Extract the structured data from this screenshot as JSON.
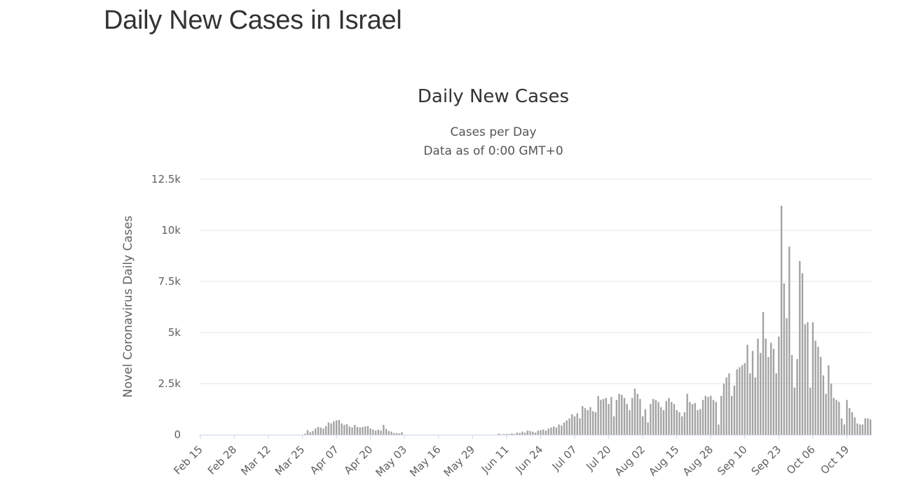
{
  "page": {
    "title": "Daily New Cases in Israel"
  },
  "chart_data": {
    "type": "bar",
    "title": "Daily New Cases",
    "subtitle_line1": "Cases per Day",
    "subtitle_line2": "Data as of 0:00 GMT+0",
    "ylabel": "Novel Coronavirus Daily Cases",
    "xlabel": "",
    "ylim": [
      0,
      12500
    ],
    "yticks": [
      0,
      2500,
      5000,
      7500,
      10000,
      12500
    ],
    "ytick_labels": [
      "0",
      "2.5k",
      "5k",
      "7.5k",
      "10k",
      "12.5k"
    ],
    "xtick_labels": [
      "Feb 15",
      "Feb 28",
      "Mar 12",
      "Mar 25",
      "Apr 07",
      "Apr 20",
      "May 03",
      "May 16",
      "May 29",
      "Jun 11",
      "Jun 24",
      "Jul 07",
      "Jul 20",
      "Aug 02",
      "Aug 15",
      "Aug 28",
      "Sep 10",
      "Sep 23",
      "Oct 06",
      "Oct 19"
    ],
    "xtick_every": 13,
    "first_date": "Feb 15",
    "bar_color": "#a3a3a3",
    "grid": true,
    "series": [
      {
        "name": "Daily Cases",
        "values": [
          0,
          0,
          0,
          0,
          0,
          0,
          0,
          0,
          0,
          0,
          0,
          0,
          0,
          0,
          0,
          0,
          0,
          0,
          0,
          0,
          0,
          0,
          0,
          0,
          0,
          0,
          0,
          0,
          0,
          0,
          0,
          0,
          0,
          0,
          0,
          0,
          0,
          0,
          0,
          0,
          50,
          220,
          120,
          180,
          300,
          380,
          350,
          300,
          420,
          600,
          550,
          650,
          700,
          720,
          550,
          480,
          520,
          400,
          350,
          480,
          380,
          350,
          380,
          400,
          420,
          300,
          250,
          200,
          250,
          200,
          480,
          280,
          180,
          150,
          80,
          80,
          60,
          120,
          0,
          0,
          0,
          0,
          0,
          0,
          0,
          0,
          0,
          0,
          0,
          0,
          0,
          0,
          0,
          0,
          0,
          0,
          0,
          0,
          0,
          0,
          0,
          0,
          0,
          0,
          0,
          0,
          0,
          0,
          0,
          0,
          0,
          0,
          0,
          0,
          50,
          20,
          30,
          40,
          30,
          60,
          30,
          100,
          80,
          150,
          100,
          200,
          180,
          150,
          100,
          200,
          220,
          250,
          200,
          300,
          350,
          400,
          350,
          500,
          450,
          600,
          700,
          800,
          1000,
          900,
          1050,
          800,
          1400,
          1300,
          1200,
          1350,
          1150,
          1100,
          1900,
          1700,
          1750,
          1800,
          1500,
          1850,
          900,
          1700,
          2000,
          1950,
          1800,
          1500,
          1200,
          1800,
          2250,
          2000,
          1750,
          900,
          1250,
          600,
          1500,
          1750,
          1700,
          1600,
          1350,
          1200,
          1650,
          1800,
          1600,
          1500,
          1200,
          1100,
          900,
          1100,
          2000,
          1600,
          1500,
          1550,
          1200,
          1250,
          1700,
          1900,
          1850,
          1900,
          1700,
          1600,
          500,
          1900,
          2500,
          2800,
          3000,
          1900,
          2400,
          3200,
          3300,
          3400,
          3500,
          4400,
          3000,
          4100,
          2800,
          4700,
          4000,
          6000,
          4700,
          3800,
          4500,
          4200,
          3000,
          4800,
          11200,
          7400,
          5700,
          9200,
          3900,
          2300,
          3700,
          8500,
          7900,
          5400,
          5500,
          2300,
          5500,
          4600,
          4300,
          3800,
          2900,
          2000,
          3400,
          2500,
          1800,
          1700,
          1600,
          800,
          500,
          1700,
          1300,
          1100,
          850,
          550,
          500,
          500,
          800,
          800,
          750
        ]
      }
    ]
  }
}
